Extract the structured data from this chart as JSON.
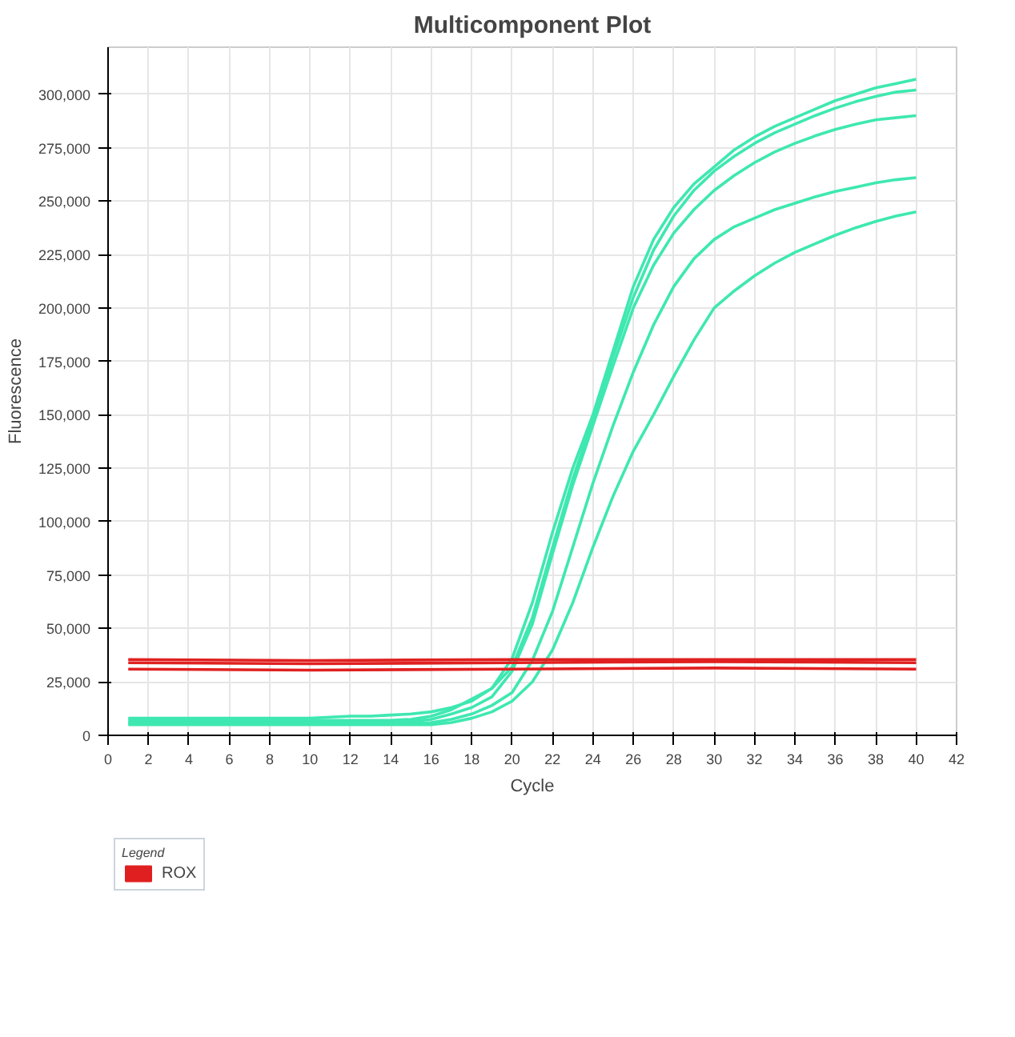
{
  "chart_data": {
    "type": "line",
    "title": "Multicomponent Plot",
    "xlabel": "Cycle",
    "ylabel": "Fluorescence",
    "legend_title": "Legend",
    "legend": "bottom",
    "grid": true,
    "marker": "none",
    "line_style": "solid",
    "x": [
      1,
      2,
      3,
      4,
      5,
      6,
      7,
      8,
      9,
      10,
      11,
      12,
      13,
      14,
      15,
      16,
      17,
      18,
      19,
      20,
      21,
      22,
      23,
      24,
      25,
      26,
      27,
      28,
      29,
      30,
      31,
      32,
      33,
      34,
      35,
      36,
      37,
      38,
      39,
      40
    ],
    "xlim": [
      0,
      42
    ],
    "xticks": [
      0,
      2,
      4,
      6,
      8,
      10,
      12,
      14,
      16,
      18,
      20,
      22,
      24,
      26,
      28,
      30,
      32,
      34,
      36,
      38,
      40,
      42
    ],
    "ylim": [
      0,
      322000
    ],
    "yticks": [
      {
        "value": 0,
        "label": "0"
      },
      {
        "value": 25000,
        "label": "25,000"
      },
      {
        "value": 50000,
        "label": "50,000"
      },
      {
        "value": 75000,
        "label": "75,000"
      },
      {
        "value": 100000,
        "label": "100,000"
      },
      {
        "value": 125000,
        "label": "125,000"
      },
      {
        "value": 150000,
        "label": "150,000"
      },
      {
        "value": 175000,
        "label": "175,000"
      },
      {
        "value": 200000,
        "label": "200,000"
      },
      {
        "value": 225000,
        "label": "225,000"
      },
      {
        "value": 250000,
        "label": "250,000"
      },
      {
        "value": 275000,
        "label": "275,000"
      },
      {
        "value": 300000,
        "label": "300,000"
      }
    ],
    "series": [
      {
        "color": "#3ee8b0",
        "values": [
          8000,
          8000,
          8000,
          8000,
          8000,
          8000,
          8000,
          8000,
          8000,
          8000,
          8500,
          9000,
          9000,
          9500,
          10000,
          11000,
          13000,
          16000,
          22000,
          36000,
          62000,
          95000,
          125000,
          150000,
          180000,
          210000,
          232000,
          247000,
          258000,
          266000,
          274000,
          280000,
          285000,
          289000,
          293000,
          297000,
          300000,
          303000,
          305000,
          307000
        ]
      },
      {
        "color": "#3ee8b0",
        "values": [
          7000,
          7000,
          7000,
          7000,
          7000,
          7000,
          7000,
          7000,
          7000,
          7000,
          7000,
          7000,
          7000,
          7000,
          7500,
          9000,
          12000,
          17000,
          22000,
          32000,
          55000,
          88000,
          120000,
          148000,
          177000,
          205000,
          227000,
          243000,
          255000,
          264000,
          271000,
          277000,
          282000,
          286000,
          290000,
          293500,
          296500,
          299000,
          301000,
          302000
        ]
      },
      {
        "color": "#3ee8b0",
        "values": [
          6000,
          6000,
          6000,
          6000,
          6000,
          6000,
          6000,
          6000,
          6000,
          6000,
          6000,
          6000,
          6000,
          6000,
          6500,
          7500,
          10000,
          13000,
          18000,
          30000,
          52000,
          85000,
          117000,
          145000,
          173000,
          200000,
          220000,
          235000,
          246000,
          255000,
          262000,
          268000,
          273000,
          277000,
          280500,
          283500,
          286000,
          288000,
          289000,
          290000
        ]
      },
      {
        "color": "#3ee8b0",
        "values": [
          5500,
          5500,
          5500,
          5500,
          5500,
          5500,
          5500,
          5500,
          5500,
          5500,
          5500,
          5500,
          5500,
          5500,
          5500,
          6000,
          7500,
          10000,
          14000,
          20000,
          35000,
          58000,
          88000,
          118000,
          145000,
          170000,
          192000,
          210000,
          223000,
          232000,
          238000,
          242000,
          246000,
          249000,
          252000,
          254500,
          256500,
          258500,
          260000,
          261000
        ]
      },
      {
        "color": "#3ee8b0",
        "values": [
          5000,
          5000,
          5000,
          5000,
          5000,
          5000,
          5000,
          5000,
          5000,
          5000,
          5000,
          5000,
          5000,
          5000,
          5000,
          5000,
          6000,
          8000,
          11000,
          16000,
          25000,
          40000,
          62000,
          88000,
          112000,
          133000,
          150000,
          168000,
          185000,
          200000,
          208000,
          215000,
          221000,
          226000,
          230000,
          234000,
          237500,
          240500,
          243000,
          245000
        ]
      },
      {
        "name": "ROX",
        "color": "#e02020",
        "x": [
          1,
          10,
          20,
          30,
          40
        ],
        "values": [
          35500,
          35000,
          35500,
          35500,
          35500
        ]
      },
      {
        "color": "#e02020",
        "x": [
          1,
          10,
          20,
          30,
          40
        ],
        "values": [
          34000,
          33500,
          34000,
          34500,
          34000
        ]
      },
      {
        "color": "#e02020",
        "x": [
          1,
          10,
          20,
          30,
          40
        ],
        "values": [
          31000,
          30500,
          31000,
          31500,
          31000
        ]
      }
    ]
  }
}
